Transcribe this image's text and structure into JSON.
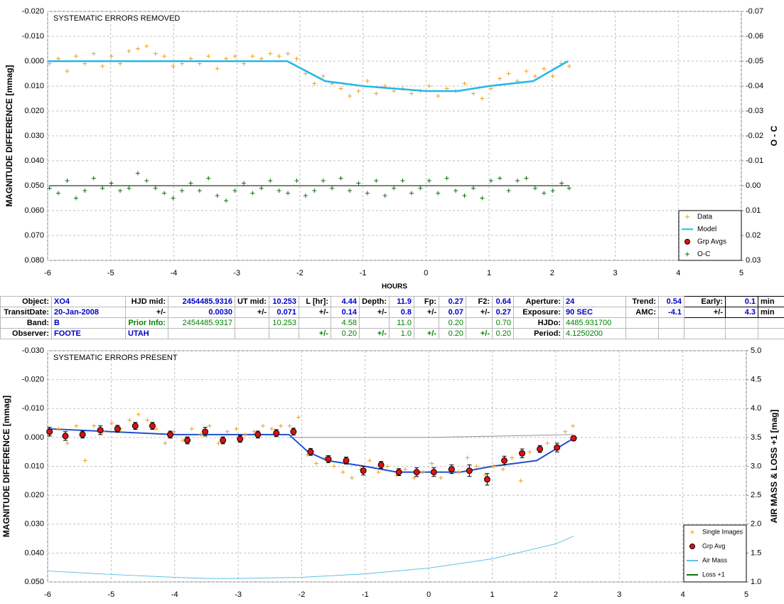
{
  "chart_data": [
    {
      "type": "scatter",
      "title": "SYSTEMATIC ERRORS REMOVED",
      "xlabel": "HOURS",
      "ylabel": "MAGNITUDE DIFFERENCE [mmag]",
      "y2label": "O - C",
      "xlim": [
        -6,
        5
      ],
      "xticks": [
        -6,
        -5,
        -4,
        -3,
        -2,
        -1,
        0,
        1,
        2,
        3,
        4,
        5
      ],
      "ylim": [
        -0.02,
        0.08
      ],
      "y_inverted": true,
      "yticks": [
        {
          "value": -0.02,
          "label": "-0.020"
        },
        {
          "value": -0.01,
          "label": "-0.010"
        },
        {
          "value": 0,
          "label": "0.000"
        },
        {
          "value": 0.01,
          "label": "0.010"
        },
        {
          "value": 0.02,
          "label": "0.020"
        },
        {
          "value": 0.03,
          "label": "0.030"
        },
        {
          "value": 0.04,
          "label": "0.040"
        },
        {
          "value": 0.05,
          "label": "0.050"
        },
        {
          "value": 0.06,
          "label": "0.060"
        },
        {
          "value": 0.07,
          "label": "0.070"
        },
        {
          "value": 0.08,
          "label": "0.080"
        }
      ],
      "y2lim": [
        -0.07,
        0.03
      ],
      "y2_inverted": true,
      "y2ticks": [
        {
          "value": -0.07,
          "label": "-0.07"
        },
        {
          "value": -0.06,
          "label": "-0.06"
        },
        {
          "value": -0.05,
          "label": "-0.05"
        },
        {
          "value": -0.04,
          "label": "-0.04"
        },
        {
          "value": -0.03,
          "label": "-0.03"
        },
        {
          "value": -0.02,
          "label": "-0.02"
        },
        {
          "value": -0.01,
          "label": "-0.01"
        },
        {
          "value": 0,
          "label": "0.00"
        },
        {
          "value": 0.01,
          "label": "0.01"
        },
        {
          "value": 0.02,
          "label": "0.02"
        },
        {
          "value": 0.03,
          "label": "0.03"
        }
      ],
      "grid": true,
      "legend": "lower right",
      "oc_zero_line": true,
      "series": [
        {
          "name": "Data",
          "color": "#f0a020",
          "marker": "plus",
          "x": [
            -5.97,
            -5.83,
            -5.69,
            -5.55,
            -5.41,
            -5.27,
            -5.13,
            -4.99,
            -4.85,
            -4.71,
            -4.57,
            -4.43,
            -4.29,
            -4.15,
            -4.01,
            -3.87,
            -3.73,
            -3.59,
            -3.45,
            -3.31,
            -3.17,
            -3.03,
            -2.89,
            -2.75,
            -2.61,
            -2.47,
            -2.33,
            -2.19,
            -2.05,
            -1.91,
            -1.77,
            -1.63,
            -1.49,
            -1.35,
            -1.21,
            -1.07,
            -0.93,
            -0.79,
            -0.65,
            -0.51,
            -0.37,
            -0.23,
            -0.09,
            0.05,
            0.19,
            0.33,
            0.47,
            0.61,
            0.75,
            0.89,
            1.03,
            1.17,
            1.31,
            1.45,
            1.59,
            1.73,
            1.87,
            2.01,
            2.15,
            2.27
          ],
          "values": [
            0.001,
            -0.001,
            0.004,
            -0.002,
            0.001,
            -0.003,
            0.002,
            -0.002,
            0.001,
            -0.004,
            -0.005,
            -0.006,
            -0.003,
            -0.002,
            0.002,
            0.001,
            -0.001,
            0.001,
            -0.002,
            0.003,
            -0.001,
            -0.002,
            0.001,
            -0.002,
            -0.001,
            -0.003,
            -0.002,
            -0.003,
            -0.001,
            0.005,
            0.009,
            0.006,
            0.009,
            0.011,
            0.014,
            0.012,
            0.008,
            0.013,
            0.01,
            0.012,
            0.011,
            0.013,
            0.012,
            0.01,
            0.014,
            0.011,
            0.012,
            0.009,
            0.013,
            0.015,
            0.011,
            0.007,
            0.005,
            0.008,
            0.004,
            0.006,
            0.003,
            0.006,
            0.001,
            0.002
          ]
        },
        {
          "name": "Model",
          "color": "#20b8e8",
          "marker": "line",
          "x": [
            -6,
            -2.2,
            -1.6,
            -1.0,
            -0.5,
            0,
            0.5,
            1.0,
            1.7,
            2.25
          ],
          "values": [
            0,
            0,
            0.008,
            0.01,
            0.011,
            0.012,
            0.012,
            0.01,
            0.008,
            0
          ]
        },
        {
          "name": "Grp Avgs",
          "color": "#e01010",
          "marker": "circle",
          "x": [],
          "values": []
        },
        {
          "name": "O-C",
          "color": "#107010",
          "marker": "plus",
          "axis": "y2",
          "x": [
            -5.97,
            -5.83,
            -5.69,
            -5.55,
            -5.41,
            -5.27,
            -5.13,
            -4.99,
            -4.85,
            -4.71,
            -4.57,
            -4.43,
            -4.29,
            -4.15,
            -4.01,
            -3.87,
            -3.73,
            -3.59,
            -3.45,
            -3.31,
            -3.17,
            -3.03,
            -2.89,
            -2.75,
            -2.61,
            -2.47,
            -2.33,
            -2.19,
            -2.05,
            -1.91,
            -1.77,
            -1.63,
            -1.49,
            -1.35,
            -1.21,
            -1.07,
            -0.93,
            -0.79,
            -0.65,
            -0.51,
            -0.37,
            -0.23,
            -0.09,
            0.05,
            0.19,
            0.33,
            0.47,
            0.61,
            0.75,
            0.89,
            1.03,
            1.17,
            1.31,
            1.45,
            1.59,
            1.73,
            1.87,
            2.01,
            2.15,
            2.27
          ],
          "values": [
            0.001,
            0.003,
            -0.002,
            0.005,
            0.002,
            -0.003,
            0.001,
            -0.001,
            0.002,
            0.001,
            -0.005,
            -0.002,
            0.001,
            0.003,
            0.005,
            0.002,
            -0.001,
            0.002,
            -0.003,
            0.004,
            0.006,
            0.002,
            -0.001,
            0.003,
            0.001,
            -0.002,
            0.002,
            0.003,
            -0.002,
            0.004,
            0.002,
            -0.002,
            0.001,
            -0.003,
            0.002,
            -0.001,
            0.003,
            -0.002,
            0.004,
            0.001,
            -0.002,
            0.003,
            0.001,
            -0.002,
            0.003,
            -0.003,
            0.002,
            0.004,
            0.001,
            0.005,
            -0.002,
            -0.003,
            0.002,
            -0.002,
            -0.003,
            0.001,
            0.003,
            0.002,
            -0.001,
            0.001
          ]
        }
      ]
    },
    {
      "type": "scatter",
      "title": "SYSTEMATIC ERRORS PRESENT",
      "ylabel": "MAGNITUDE DIFFERENCE [mmag]",
      "y2label": "AIR MASS & LOSS +1 [mag]",
      "xlim": [
        -6,
        5
      ],
      "xticks": [
        -6,
        -5,
        -4,
        -3,
        -2,
        -1,
        0,
        1,
        2,
        3,
        4,
        5
      ],
      "ylim": [
        -0.03,
        0.05
      ],
      "y_inverted": true,
      "yticks": [
        {
          "value": -0.03,
          "label": "-0.030"
        },
        {
          "value": -0.02,
          "label": "-0.020"
        },
        {
          "value": -0.01,
          "label": "-0.010"
        },
        {
          "value": 0,
          "label": "0.000"
        },
        {
          "value": 0.01,
          "label": "0.010"
        },
        {
          "value": 0.02,
          "label": "0.020"
        },
        {
          "value": 0.03,
          "label": "0.030"
        },
        {
          "value": 0.04,
          "label": "0.040"
        },
        {
          "value": 0.05,
          "label": "0.050"
        }
      ],
      "y2lim": [
        1,
        5
      ],
      "y2_inverted": false,
      "y2ticks": [
        {
          "value": 1,
          "label": "1.0"
        },
        1.5,
        {
          "value": 2,
          "label": "2.0"
        },
        2.5,
        {
          "value": 3,
          "label": "3.0"
        },
        3.5,
        {
          "value": 4,
          "label": "4.0"
        },
        4.5,
        {
          "value": 5,
          "label": "5.0"
        }
      ],
      "grid": true,
      "legend": "lower right",
      "oc_zero_line": false,
      "model": {
        "color": "#2050d0",
        "x": [
          -6,
          -5,
          -4,
          -3,
          -2.2,
          -1.9,
          -1.6,
          -1,
          -0.5,
          0,
          0.5,
          1,
          1.7,
          2.28
        ],
        "values": [
          -0.003,
          -0.002,
          -0.001,
          -0.001,
          -0.001,
          0.005,
          0.008,
          0.01,
          0.012,
          0.012,
          0.012,
          0.01,
          0.008,
          0.0003
        ]
      },
      "baseline": {
        "color": "#909090",
        "x": [
          -2.2,
          0,
          2.28
        ],
        "values": [
          0,
          0,
          -0.001
        ]
      },
      "series": [
        {
          "name": "Single Images",
          "color": "#f0a020",
          "marker": "plus",
          "x": [
            -5.97,
            -5.83,
            -5.69,
            -5.55,
            -5.41,
            -5.27,
            -5.13,
            -4.99,
            -4.85,
            -4.71,
            -4.57,
            -4.43,
            -4.29,
            -4.15,
            -4.01,
            -3.87,
            -3.73,
            -3.59,
            -3.45,
            -3.31,
            -3.17,
            -3.03,
            -2.89,
            -2.75,
            -2.61,
            -2.47,
            -2.33,
            -2.19,
            -2.05,
            -1.91,
            -1.77,
            -1.63,
            -1.49,
            -1.35,
            -1.21,
            -1.07,
            -0.93,
            -0.79,
            -0.65,
            -0.51,
            -0.37,
            -0.23,
            -0.09,
            0.05,
            0.19,
            0.33,
            0.47,
            0.61,
            0.75,
            0.89,
            1.03,
            1.17,
            1.31,
            1.45,
            1.59,
            1.73,
            1.87,
            2.01,
            2.15,
            2.27
          ],
          "values": [
            -0.001,
            -0.003,
            0.002,
            -0.004,
            0.008,
            -0.004,
            -0.002,
            -0.005,
            -0.003,
            -0.006,
            -0.008,
            -0.006,
            -0.003,
            0.002,
            -0.002,
            0.001,
            -0.003,
            -0.001,
            -0.004,
            0.002,
            -0.002,
            -0.003,
            -0.001,
            -0.002,
            -0.004,
            -0.003,
            -0.004,
            -0.004,
            -0.007,
            0.006,
            0.009,
            0.007,
            0.01,
            0.012,
            0.014,
            0.011,
            0.008,
            0.012,
            0.01,
            0.013,
            0.011,
            0.014,
            0.012,
            0.009,
            0.014,
            0.011,
            0.012,
            0.007,
            0.01,
            0.013,
            0.01,
            0.011,
            0.007,
            0.015,
            0.005,
            0.004,
            0.002,
            0.004,
            -0.002,
            -0.004
          ]
        },
        {
          "name": "Grp Avg",
          "color": "#e01010",
          "marker": "circle",
          "x": [
            -5.97,
            -5.72,
            -5.45,
            -5.17,
            -4.9,
            -4.62,
            -4.35,
            -4.07,
            -3.8,
            -3.52,
            -3.24,
            -2.97,
            -2.69,
            -2.4,
            -2.13,
            -1.86,
            -1.58,
            -1.3,
            -1.03,
            -0.75,
            -0.47,
            -0.19,
            0.08,
            0.36,
            0.64,
            0.92,
            1.19,
            1.47,
            1.75,
            2.02,
            2.28
          ],
          "values": [
            -0.002,
            -0.0005,
            -0.001,
            -0.0025,
            -0.003,
            -0.004,
            -0.004,
            -0.001,
            0.001,
            -0.002,
            0.001,
            0.0005,
            -0.001,
            -0.0015,
            -0.002,
            0.005,
            0.0075,
            0.008,
            0.0115,
            0.0095,
            0.012,
            0.012,
            0.012,
            0.011,
            0.0115,
            0.0145,
            0.008,
            0.0055,
            0.004,
            0.0035,
            0.0003
          ],
          "errors": [
            0.0015,
            0.0015,
            0.0012,
            0.0015,
            0.0012,
            0.0012,
            0.0012,
            0.0012,
            0.0012,
            0.0015,
            0.0012,
            0.0012,
            0.0012,
            0.0012,
            0.0012,
            0.0012,
            0.0012,
            0.0012,
            0.0015,
            0.0012,
            0.0012,
            0.0015,
            0.0015,
            0.0015,
            0.002,
            0.002,
            0.0015,
            0.0015,
            0.0012,
            0.0015,
            0.0008
          ]
        },
        {
          "name": "Air Mass",
          "color": "#60c0e8",
          "marker": "line",
          "axis": "y2",
          "x": [
            -6,
            -5,
            -4,
            -3.5,
            -3,
            -2,
            -1,
            0,
            1,
            2,
            2.28
          ],
          "values": [
            1.19,
            1.13,
            1.08,
            1.06,
            1.06,
            1.08,
            1.14,
            1.24,
            1.4,
            1.66,
            1.79
          ]
        },
        {
          "name": "Loss +1",
          "color": "#107010",
          "marker": "line",
          "axis": "y2",
          "x": [],
          "values": []
        }
      ]
    }
  ],
  "table": {
    "rows": [
      [
        "Object:",
        "XO4",
        "HJD mid:",
        "2454485.9316",
        "UT mid:",
        "10.253",
        "L [hr]:",
        "4.44",
        "Depth:",
        "11.9",
        "Fp:",
        "0.27",
        "F2:",
        "0.64",
        "Aperture:",
        "24",
        "Trend:",
        "0.54",
        "Early:",
        "0.1",
        "min"
      ],
      [
        "TransitDate:",
        "20-Jan-2008",
        "+/-",
        "0.0030",
        "+/-",
        "0.071",
        "+/-",
        "0.14",
        "+/-",
        "0.8",
        "+/-",
        "0.07",
        "+/-",
        "0.27",
        "Exposure:",
        "90 SEC",
        "AMC:",
        "-4.1",
        "+/-",
        "4.3",
        "min"
      ],
      [
        "Band:",
        "B",
        "Prior Info:",
        "2454485.9317",
        null,
        "10.253",
        null,
        "4.58",
        null,
        "11.0",
        null,
        "0.20",
        null,
        "0.70",
        "HJDo:",
        "4485.931700",
        null,
        null,
        null,
        null,
        null
      ],
      [
        "Observer:",
        "FOOTE",
        "UTAH",
        null,
        null,
        null,
        "+/-",
        "0.20",
        "+/-",
        "1.0",
        "+/-",
        "0.20",
        "+/-",
        "0.20",
        "Period:",
        "4.1250200",
        null,
        null,
        null,
        null,
        null
      ]
    ]
  }
}
